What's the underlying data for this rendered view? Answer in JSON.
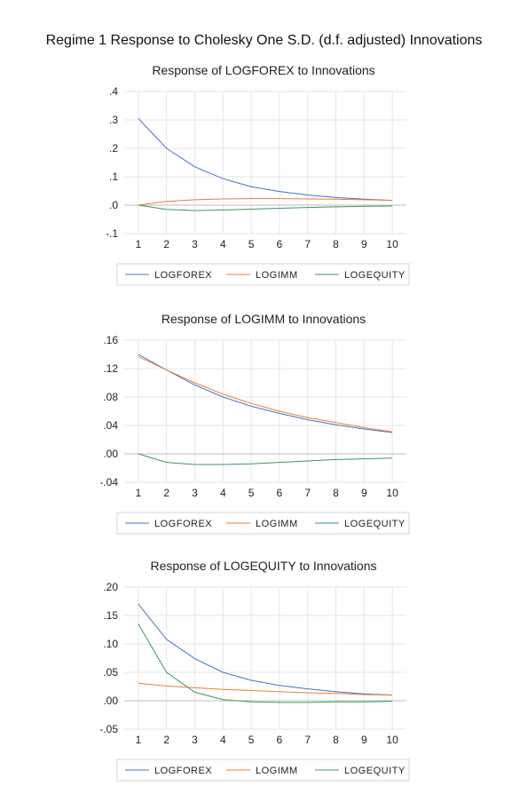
{
  "title": "Regime 1 Response to Cholesky One S.D. (d.f. adjusted) Innovations",
  "colors": {
    "LOGFOREX": "#4472c4",
    "LOGIMM": "#ed7d31",
    "LOGEQUITY": "#3a9a5b"
  },
  "chart_data": [
    {
      "type": "line",
      "title": "Response of LOGFOREX to Innovations",
      "x": [
        1,
        2,
        3,
        4,
        5,
        6,
        7,
        8,
        9,
        10
      ],
      "xticks": [
        "1",
        "2",
        "3",
        "4",
        "5",
        "6",
        "7",
        "8",
        "9",
        "10"
      ],
      "ylim": [
        -0.1,
        0.4
      ],
      "yticks": [
        ".4",
        ".3",
        ".2",
        ".1",
        ".0",
        "-.1"
      ],
      "ytick_values": [
        0.4,
        0.3,
        0.2,
        0.1,
        0.0,
        -0.1
      ],
      "grid": true,
      "legend_position": "bottom",
      "series": [
        {
          "name": "LOGFOREX",
          "values": [
            0.305,
            0.2,
            0.135,
            0.093,
            0.065,
            0.048,
            0.036,
            0.027,
            0.021,
            0.017
          ]
        },
        {
          "name": "LOGIMM",
          "values": [
            0.0,
            0.013,
            0.019,
            0.022,
            0.023,
            0.023,
            0.022,
            0.021,
            0.019,
            0.017
          ]
        },
        {
          "name": "LOGEQUITY",
          "values": [
            0.0,
            -0.015,
            -0.019,
            -0.017,
            -0.014,
            -0.011,
            -0.008,
            -0.006,
            -0.004,
            -0.003
          ]
        }
      ]
    },
    {
      "type": "line",
      "title": "Response of LOGIMM to Innovations",
      "x": [
        1,
        2,
        3,
        4,
        5,
        6,
        7,
        8,
        9,
        10
      ],
      "xticks": [
        "1",
        "2",
        "3",
        "4",
        "5",
        "6",
        "7",
        "8",
        "9",
        "10"
      ],
      "ylim": [
        -0.04,
        0.16
      ],
      "yticks": [
        ".16",
        ".12",
        ".08",
        ".04",
        ".00",
        "-.04"
      ],
      "ytick_values": [
        0.16,
        0.12,
        0.08,
        0.04,
        0.0,
        -0.04
      ],
      "grid": true,
      "legend_position": "bottom",
      "series": [
        {
          "name": "LOGFOREX",
          "values": [
            0.14,
            0.118,
            0.097,
            0.08,
            0.067,
            0.057,
            0.048,
            0.041,
            0.035,
            0.03
          ]
        },
        {
          "name": "LOGIMM",
          "values": [
            0.137,
            0.118,
            0.1,
            0.084,
            0.071,
            0.06,
            0.051,
            0.044,
            0.037,
            0.031
          ]
        },
        {
          "name": "LOGEQUITY",
          "values": [
            0.0,
            -0.012,
            -0.015,
            -0.015,
            -0.014,
            -0.012,
            -0.01,
            -0.008,
            -0.007,
            -0.006
          ]
        }
      ]
    },
    {
      "type": "line",
      "title": "Response of LOGEQUITY to Innovations",
      "x": [
        1,
        2,
        3,
        4,
        5,
        6,
        7,
        8,
        9,
        10
      ],
      "xticks": [
        "1",
        "2",
        "3",
        "4",
        "5",
        "6",
        "7",
        "8",
        "9",
        "10"
      ],
      "ylim": [
        -0.05,
        0.2
      ],
      "yticks": [
        ".20",
        ".15",
        ".10",
        ".05",
        ".00",
        "-.05"
      ],
      "ytick_values": [
        0.2,
        0.15,
        0.1,
        0.05,
        0.0,
        -0.05
      ],
      "grid": true,
      "legend_position": "bottom",
      "series": [
        {
          "name": "LOGFOREX",
          "values": [
            0.17,
            0.108,
            0.074,
            0.05,
            0.036,
            0.027,
            0.021,
            0.016,
            0.012,
            0.01
          ]
        },
        {
          "name": "LOGIMM",
          "values": [
            0.031,
            0.026,
            0.023,
            0.02,
            0.018,
            0.016,
            0.014,
            0.013,
            0.011,
            0.01
          ]
        },
        {
          "name": "LOGEQUITY",
          "values": [
            0.135,
            0.05,
            0.015,
            0.002,
            -0.002,
            -0.003,
            -0.003,
            -0.002,
            -0.002,
            -0.001
          ]
        }
      ]
    }
  ]
}
